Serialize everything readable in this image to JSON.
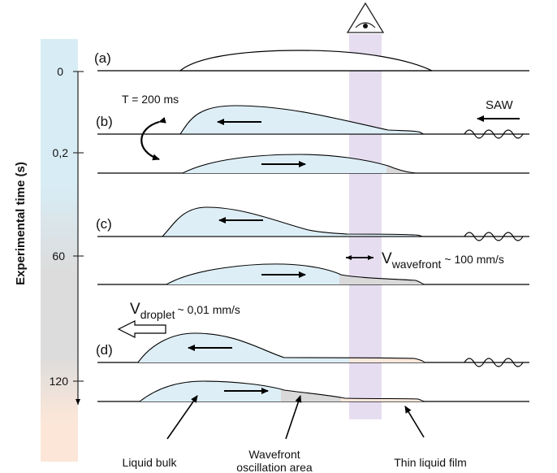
{
  "time_axis": {
    "label": "Experimental time (s)",
    "ticks": [
      "0",
      "0,2",
      "60",
      "120"
    ]
  },
  "panels": {
    "a": "(a)",
    "b": "(b)",
    "c": "(c)",
    "d": "(d)"
  },
  "annotations": {
    "period": "T = 200 ms",
    "saw": "SAW",
    "v_wavefront_main": "V",
    "v_wavefront_sub": "wavefront",
    "v_wavefront_value": "~ 100 mm/s",
    "v_droplet_main": "V",
    "v_droplet_sub": "droplet",
    "v_droplet_value": "~ 0,01 mm/s"
  },
  "legend_labels": {
    "liquid_bulk": "Liquid bulk",
    "wavefront_line1": "Wavefront",
    "wavefront_line2": "oscillation area",
    "thin_film": "Thin liquid film"
  },
  "colors": {
    "bulk": "#ddeef6",
    "wavefront": "#d9d9d9",
    "film": "#fbe8dc",
    "observation_band": "#e6def0",
    "time_bar_top": "#d8ecf5",
    "time_bar_mid": "#dcdcdc",
    "time_bar_bottom": "#fbe6d8"
  },
  "icons": {
    "observer": "eye-icon"
  }
}
